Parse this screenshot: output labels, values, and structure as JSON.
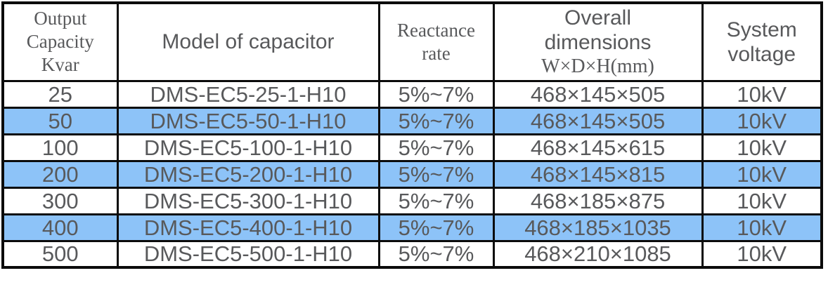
{
  "colors": {
    "row_highlight_blue": "#8dc3f8",
    "text_gray": "#58595b",
    "grid_border": "#0b0b0b",
    "page_background": "#ffffff"
  },
  "table": {
    "header": {
      "capacity": {
        "line1": "Output",
        "line2": "Capacity",
        "line3": "Kvar"
      },
      "model": {
        "line1": "Model of capacitor"
      },
      "reactance": {
        "line1": "Reactance",
        "line2": "rate"
      },
      "dimensions": {
        "line1": "Overall",
        "line2": "dimensions",
        "line3": "W×D×H(mm)"
      },
      "voltage": {
        "line1": "System",
        "line2": "voltage"
      }
    },
    "rows": [
      {
        "capacity": "25",
        "model": "DMS-EC5-25-1-H10",
        "reactance": "5%~7%",
        "dimensions": "468×145×505",
        "voltage": "10kV"
      },
      {
        "capacity": "50",
        "model": "DMS-EC5-50-1-H10",
        "reactance": "5%~7%",
        "dimensions": "468×145×505",
        "voltage": "10kV"
      },
      {
        "capacity": "100",
        "model": "DMS-EC5-100-1-H10",
        "reactance": "5%~7%",
        "dimensions": "468×145×615",
        "voltage": "10kV"
      },
      {
        "capacity": "200",
        "model": "DMS-EC5-200-1-H10",
        "reactance": "5%~7%",
        "dimensions": "468×145×815",
        "voltage": "10kV"
      },
      {
        "capacity": "300",
        "model": "DMS-EC5-300-1-H10",
        "reactance": "5%~7%",
        "dimensions": "468×185×875",
        "voltage": "10kV"
      },
      {
        "capacity": "400",
        "model": "DMS-EC5-400-1-H10",
        "reactance": "5%~7%",
        "dimensions": "468×185×1035",
        "voltage": "10kV"
      },
      {
        "capacity": "500",
        "model": "DMS-EC5-500-1-H10",
        "reactance": "5%~7%",
        "dimensions": "468×210×1085",
        "voltage": "10kV"
      }
    ]
  }
}
